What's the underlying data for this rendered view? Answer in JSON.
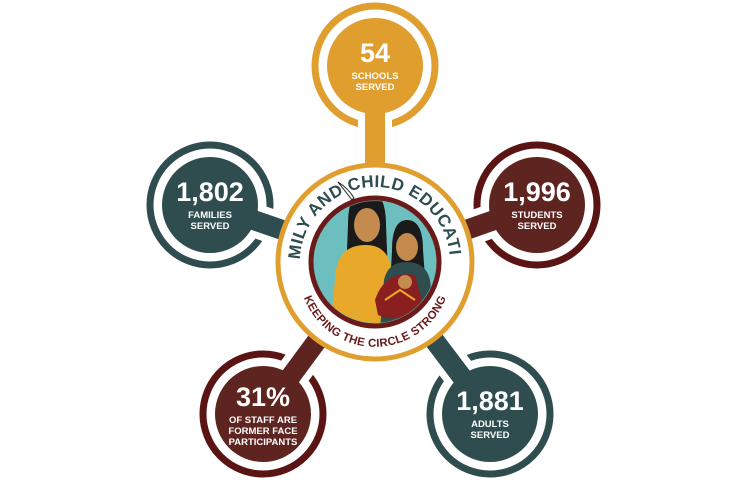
{
  "logo": {
    "title": "FAMILY AND CHILD EDUCATION",
    "tagline": "KEEPING THE CIRCLE STRONG"
  },
  "stats": [
    {
      "value": "54",
      "label_lines": [
        "SCHOOLS",
        "SERVED"
      ],
      "color": "#e09e2e",
      "ring": "#e09e2e"
    },
    {
      "value": "1,802",
      "label_lines": [
        "FAMILIES",
        "SERVED"
      ],
      "color": "#2f4c4e",
      "ring": "#2f4c4e"
    },
    {
      "value": "1,996",
      "label_lines": [
        "STUDENTS",
        "SERVED"
      ],
      "color": "#5e2420",
      "ring": "#5a1414"
    },
    {
      "value": "31%",
      "label_lines": [
        "OF STAFF ARE",
        "FORMER FACE",
        "PARTICIPANTS"
      ],
      "color": "#5e2420",
      "ring": "#5a1414"
    },
    {
      "value": "1,881",
      "label_lines": [
        "ADULTS",
        "SERVED"
      ],
      "color": "#2f4c4e",
      "ring": "#2f4c4e"
    }
  ],
  "colors": {
    "gold": "#e09e2e",
    "teal": "#2f4c4e",
    "maroon": "#5e2420",
    "sky": "#6dbfbf"
  }
}
